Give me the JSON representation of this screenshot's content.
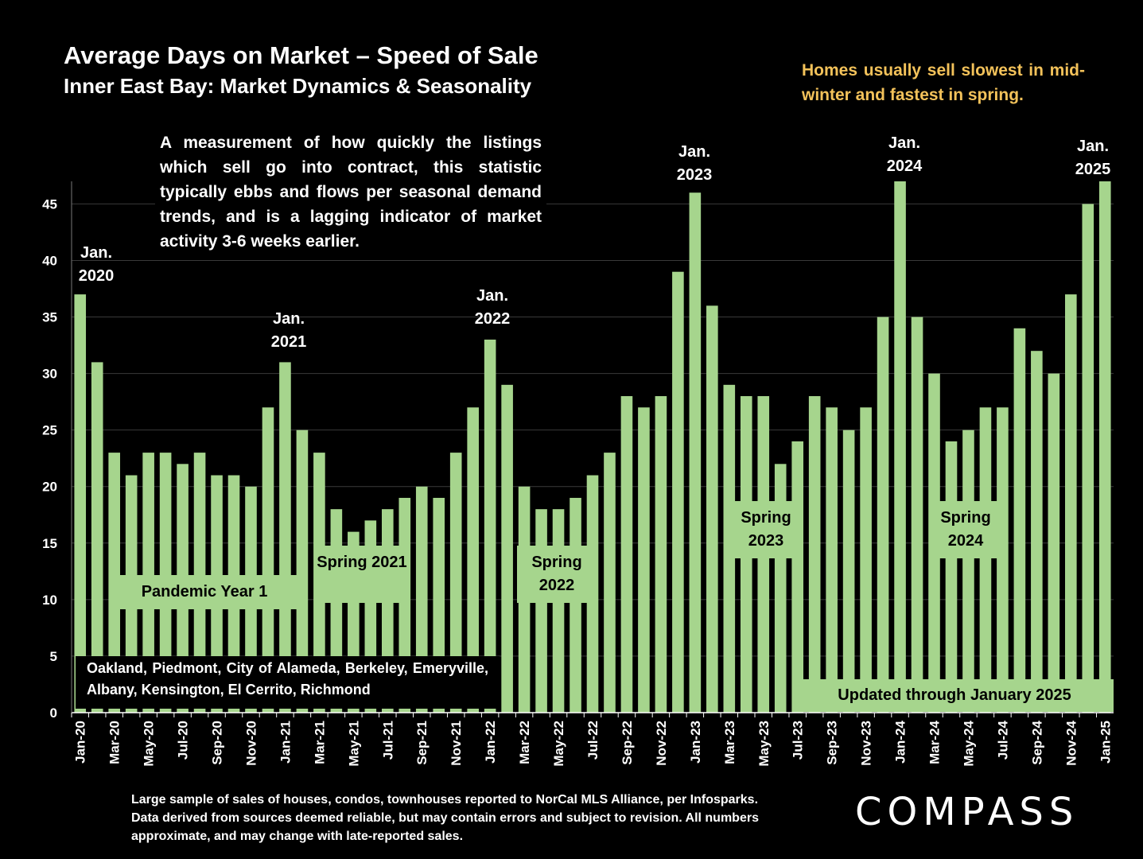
{
  "header": {
    "title": "Average Days on Market – Speed of Sale",
    "subtitle": "Inner East Bay: Market Dynamics & Seasonality",
    "callout": "Homes usually sell slowest in mid-winter and fastest in spring."
  },
  "description": "A measurement of how quickly the listings which sell go into contract, this statistic typically ebbs and flows per seasonal demand trends, and is a lagging indicator of market activity 3-6 weeks earlier.",
  "annotations": {
    "pandemic": "Pandemic Year 1",
    "spring_2021": "Spring 2021",
    "spring_2022": "Spring 2022",
    "spring_2023": "Spring 2023",
    "spring_2024": "Spring 2024",
    "cities": "Oakland, Piedmont, City of Alameda, Berkeley, Emeryville, Albany, Kensington, El Cerrito, Richmond",
    "updated": "Updated through January 2025",
    "jan_2020": "Jan. 2020",
    "jan_2021": "Jan. 2021",
    "jan_2022": "Jan. 2022",
    "jan_2023": "Jan. 2023",
    "jan_2024": "Jan. 2024",
    "jan_2025": "Jan. 2025"
  },
  "footer": {
    "footnote": "Large sample of sales of houses, condos, townhouses reported to NorCal MLS Alliance, per Infosparks. Data derived from sources deemed reliable, but may contain errors and subject to revision. All numbers approximate, and may change with late-reported sales.",
    "logo": "COMPASS"
  },
  "colors": {
    "background": "#000000",
    "bar": "#a6d58d",
    "callout": "#f3c25a",
    "text": "#ffffff"
  },
  "chart_data": {
    "type": "bar",
    "title": "Average Days on Market – Speed of Sale",
    "ylim": [
      0,
      47
    ],
    "yticks": [
      0,
      5,
      10,
      15,
      20,
      25,
      30,
      35,
      40,
      45
    ],
    "grid": true,
    "categories": [
      "Jan-20",
      "Feb-20",
      "Mar-20",
      "Apr-20",
      "May-20",
      "Jun-20",
      "Jul-20",
      "Aug-20",
      "Sep-20",
      "Oct-20",
      "Nov-20",
      "Dec-20",
      "Jan-21",
      "Feb-21",
      "Mar-21",
      "Apr-21",
      "May-21",
      "Jun-21",
      "Jul-21",
      "Aug-21",
      "Sep-21",
      "Oct-21",
      "Nov-21",
      "Dec-21",
      "Jan-22",
      "Feb-22",
      "Mar-22",
      "Apr-22",
      "May-22",
      "Jun-22",
      "Jul-22",
      "Aug-22",
      "Sep-22",
      "Oct-22",
      "Nov-22",
      "Dec-22",
      "Jan-23",
      "Feb-23",
      "Mar-23",
      "Apr-23",
      "May-23",
      "Jun-23",
      "Jul-23",
      "Aug-23",
      "Sep-23",
      "Oct-23",
      "Nov-23",
      "Dec-23",
      "Jan-24",
      "Feb-24",
      "Mar-24",
      "Apr-24",
      "May-24",
      "Jun-24",
      "Jul-24",
      "Aug-24",
      "Sep-24",
      "Oct-24",
      "Nov-24",
      "Dec-24",
      "Jan-25"
    ],
    "tick_labels": [
      "Jan-20",
      "",
      "Mar-20",
      "",
      "May-20",
      "",
      "Jul-20",
      "",
      "Sep-20",
      "",
      "Nov-20",
      "",
      "Jan-21",
      "",
      "Mar-21",
      "",
      "May-21",
      "",
      "Jul-21",
      "",
      "Sep-21",
      "",
      "Nov-21",
      "",
      "Jan-22",
      "",
      "Mar-22",
      "",
      "May-22",
      "",
      "Jul-22",
      "",
      "Sep-22",
      "",
      "Nov-22",
      "",
      "Jan-23",
      "",
      "Mar-23",
      "",
      "May-23",
      "",
      "Jul-23",
      "",
      "Sep-23",
      "",
      "Nov-23",
      "",
      "Jan-24",
      "",
      "Mar-24",
      "",
      "May-24",
      "",
      "Jul-24",
      "",
      "Sep-24",
      "",
      "Nov-24",
      "",
      "Jan-25"
    ],
    "values": [
      37,
      31,
      23,
      21,
      23,
      23,
      22,
      23,
      21,
      21,
      20,
      27,
      31,
      25,
      23,
      18,
      16,
      17,
      18,
      19,
      20,
      19,
      23,
      27,
      33,
      29,
      20,
      18,
      18,
      19,
      21,
      23,
      28,
      27,
      28,
      39,
      46,
      36,
      29,
      28,
      28,
      22,
      24,
      28,
      27,
      25,
      27,
      35,
      47,
      35,
      30,
      24,
      25,
      27,
      27,
      34,
      32,
      30,
      37,
      45,
      47
    ]
  }
}
